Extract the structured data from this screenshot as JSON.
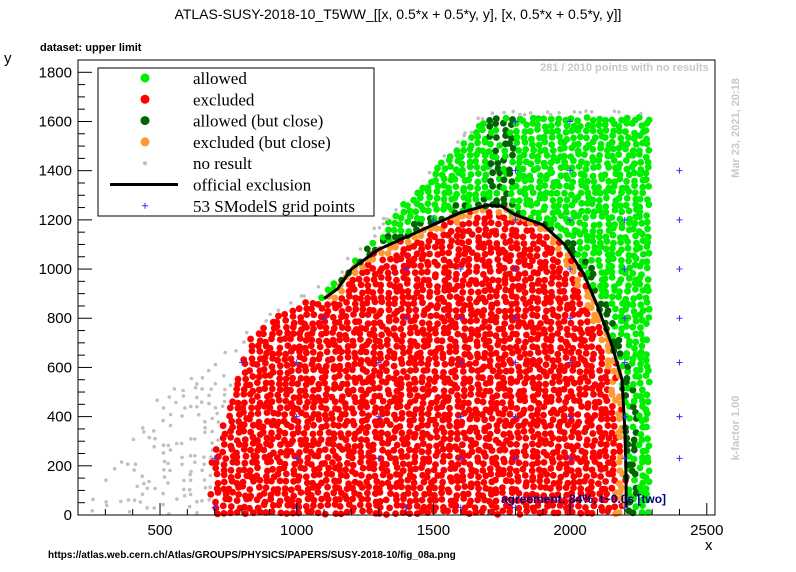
{
  "page": {
    "title": "ATLAS-SUSY-2018-10_T5WW_[[x, 0.5*x + 0.5*y, y], [x, 0.5*x + 0.5*y, y]]",
    "dataset_label": "dataset: upper limit",
    "no_result_note": "281 / 2010 points with no results",
    "timestamp": "Mar 23, 2021, 20:18",
    "kfactor": "k-factor 1.00",
    "agreement": "agreement: 84%, t~0.0s [two]",
    "source_url": "https://atlas.web.cern.ch/Atlas/GROUPS/PHYSICS/PAPERS/SUSY-2018-10/fig_08a.png"
  },
  "colors": {
    "allowed": "#00ee00",
    "excluded": "#ff0000",
    "allowed_close": "#006400",
    "excluded_close": "#ff9933",
    "no_result": "#c0c0c0",
    "official": "#000000",
    "grid_points": "#3333ff",
    "agreement_text": "#000080",
    "side_text": "#c8c8c8"
  },
  "chart_data": {
    "type": "scatter",
    "title": "ATLAS-SUSY-2018-10_T5WW_[[x, 0.5*x + 0.5*y, y], [x, 0.5*x + 0.5*y, y]]",
    "xlabel": "x",
    "ylabel": "y",
    "xlim": [
      200,
      2530
    ],
    "ylim": [
      0,
      1850
    ],
    "x_ticks": [
      500,
      1000,
      1500,
      2000,
      2500
    ],
    "y_ticks": [
      0,
      200,
      400,
      600,
      800,
      1000,
      1200,
      1400,
      1600,
      1800
    ],
    "legend_position": "top-left",
    "legend": [
      {
        "key": "allowed",
        "label": "allowed",
        "marker": "dot"
      },
      {
        "key": "excluded",
        "label": "excluded",
        "marker": "dot"
      },
      {
        "key": "allowed_close",
        "label": "allowed (but close)",
        "marker": "dot"
      },
      {
        "key": "excluded_close",
        "label": "excluded (but close)",
        "marker": "dot"
      },
      {
        "key": "no_result",
        "label": "no result",
        "marker": "small-dot"
      },
      {
        "key": "official",
        "label": "official exclusion",
        "marker": "line"
      },
      {
        "key": "grid_points",
        "label": "53 SModelS grid points",
        "marker": "plus"
      }
    ],
    "official_exclusion": [
      [
        1100,
        880
      ],
      [
        1150,
        920
      ],
      [
        1200,
        1000
      ],
      [
        1300,
        1080
      ],
      [
        1400,
        1130
      ],
      [
        1500,
        1180
      ],
      [
        1600,
        1230
      ],
      [
        1700,
        1260
      ],
      [
        1750,
        1255
      ],
      [
        1800,
        1220
      ],
      [
        1900,
        1180
      ],
      [
        1980,
        1100
      ],
      [
        2050,
        980
      ],
      [
        2100,
        850
      ],
      [
        2150,
        700
      ],
      [
        2190,
        550
      ],
      [
        2200,
        350
      ],
      [
        2205,
        150
      ],
      [
        2205,
        30
      ]
    ],
    "smodels_grid_points": [
      [
        700,
        30
      ],
      [
        1000,
        30
      ],
      [
        1400,
        30
      ],
      [
        1600,
        30
      ],
      [
        1800,
        30
      ],
      [
        2000,
        30
      ],
      [
        2200,
        30
      ],
      [
        700,
        230
      ],
      [
        1000,
        230
      ],
      [
        1300,
        230
      ],
      [
        1600,
        230
      ],
      [
        1800,
        230
      ],
      [
        2000,
        230
      ],
      [
        2200,
        230
      ],
      [
        2400,
        230
      ],
      [
        1000,
        400
      ],
      [
        1300,
        400
      ],
      [
        1600,
        400
      ],
      [
        1800,
        400
      ],
      [
        2000,
        400
      ],
      [
        2200,
        400
      ],
      [
        2400,
        400
      ],
      [
        800,
        620
      ],
      [
        1000,
        620
      ],
      [
        1300,
        620
      ],
      [
        1600,
        620
      ],
      [
        1800,
        620
      ],
      [
        2000,
        620
      ],
      [
        2200,
        620
      ],
      [
        2400,
        620
      ],
      [
        1100,
        800
      ],
      [
        1400,
        800
      ],
      [
        1600,
        800
      ],
      [
        1800,
        800
      ],
      [
        2000,
        800
      ],
      [
        2200,
        800
      ],
      [
        2400,
        800
      ],
      [
        1400,
        1000
      ],
      [
        1600,
        1000
      ],
      [
        1800,
        1000
      ],
      [
        2000,
        1000
      ],
      [
        2200,
        1000
      ],
      [
        2400,
        1000
      ],
      [
        1500,
        1200
      ],
      [
        1800,
        1200
      ],
      [
        2000,
        1200
      ],
      [
        2200,
        1200
      ],
      [
        2400,
        1200
      ],
      [
        1800,
        1400
      ],
      [
        2000,
        1400
      ],
      [
        2400,
        1400
      ],
      [
        1800,
        1600
      ],
      [
        2000,
        1600
      ]
    ],
    "region_model": {
      "allowed_region_upper_edge": [
        [
          1100,
          900
        ],
        [
          1500,
          1400
        ],
        [
          1700,
          1650
        ],
        [
          2250,
          1650
        ]
      ],
      "excluded_region_lower_edge_x": 690,
      "max_x_with_points": 2290
    }
  }
}
